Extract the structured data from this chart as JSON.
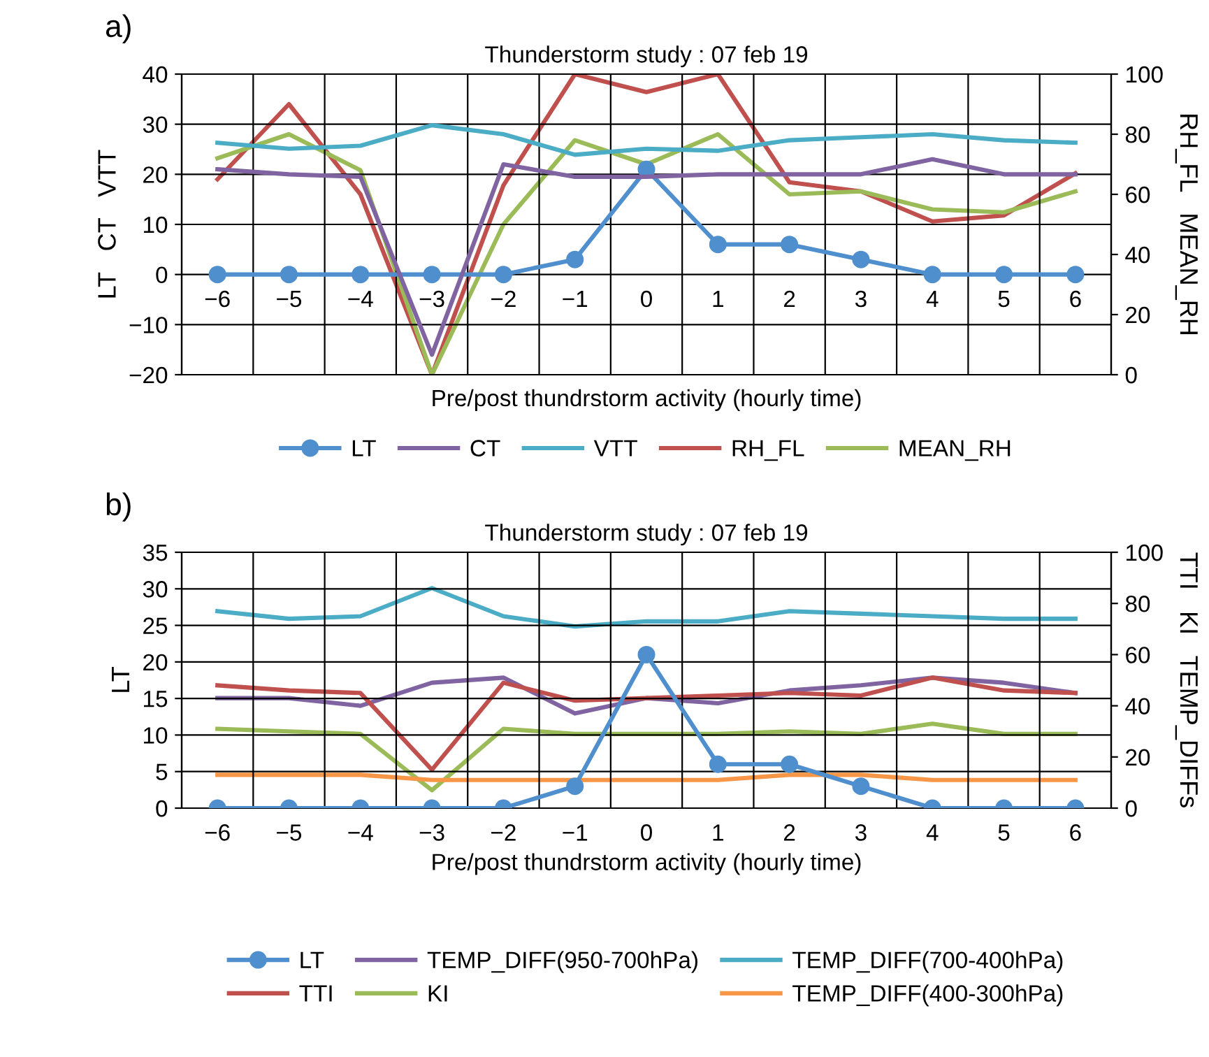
{
  "chart_data": [
    {
      "type": "line",
      "title": "Thunderstorm study : 07 feb 19",
      "xlabel": "Pre/post thundrstorm activity (hourly time)",
      "ylabel": "LT   CT   VTT",
      "y2label": "RH_FL   MEAN_RH",
      "annotations": [
        "a)"
      ],
      "categories": [
        "−6",
        "−5",
        "−4",
        "−3",
        "−2",
        "−1",
        "0",
        "1",
        "2",
        "3",
        "4",
        "5",
        "6"
      ],
      "ylim": [
        -20,
        40
      ],
      "yticks": [
        {
          "value": -20,
          "label": "−20"
        },
        {
          "value": -10,
          "label": "−10"
        },
        0,
        10,
        20,
        30,
        40
      ],
      "y2lim": [
        0,
        100
      ],
      "y2ticks": [
        0,
        20,
        40,
        60,
        80,
        100
      ],
      "grid": true,
      "legend": "bottom",
      "series": [
        {
          "name": "LT",
          "color": "#4f8fce",
          "marker": "circle",
          "values": [
            0,
            0,
            0,
            0,
            0,
            3,
            21,
            6,
            6,
            3,
            0,
            0,
            0
          ]
        },
        {
          "name": "CT",
          "color": "#8064a2",
          "values": [
            21,
            20,
            19.5,
            -16,
            22,
            19.5,
            19.5,
            20,
            20,
            20,
            23,
            20,
            20
          ]
        },
        {
          "name": "VTT",
          "color": "#4bacc6",
          "values": [
            26.3,
            25.1,
            25.7,
            29.8,
            28,
            23.9,
            25.1,
            24.7,
            26.8,
            27.4,
            28,
            26.8,
            26.3
          ]
        },
        {
          "name": "RH_FL",
          "color": "#c0504d",
          "axis": "y2",
          "values": [
            65,
            90,
            60,
            0,
            63,
            100,
            94,
            100,
            64,
            61,
            51,
            53,
            67
          ]
        },
        {
          "name": "MEAN_RH",
          "color": "#9bbb59",
          "axis": "y2",
          "values": [
            72,
            80,
            68,
            0,
            50,
            78,
            70,
            80,
            60,
            61,
            55,
            54,
            61
          ]
        }
      ]
    },
    {
      "type": "line",
      "title": "Thunderstorm study : 07 feb 19",
      "xlabel": "Pre/post thundrstorm activity (hourly time)",
      "ylabel": "LT",
      "y2label": "TTI   KI   TEMP_DIFFs",
      "annotations": [
        "b)"
      ],
      "categories": [
        "−6",
        "−5",
        "−4",
        "−3",
        "−2",
        "−1",
        "0",
        "1",
        "2",
        "3",
        "4",
        "5",
        "6"
      ],
      "ylim": [
        0,
        35
      ],
      "yticks": [
        0,
        5,
        10,
        15,
        20,
        25,
        30,
        35
      ],
      "y2lim": [
        0,
        100
      ],
      "y2ticks": [
        0,
        20,
        40,
        60,
        80,
        100
      ],
      "grid": true,
      "legend": "bottom",
      "series": [
        {
          "name": "LT",
          "color": "#4f8fce",
          "marker": "circle",
          "values": [
            0,
            0,
            0,
            0,
            0,
            3,
            21,
            6,
            6,
            3,
            0,
            0,
            0
          ]
        },
        {
          "name": "TEMP_DIFF(950-700hPa)",
          "color": "#8064a2",
          "axis": "y2",
          "values": [
            43,
            43,
            40,
            49,
            51,
            37,
            43,
            41,
            46,
            48,
            51,
            49,
            45
          ]
        },
        {
          "name": "TEMP_DIFF(700-400hPa)",
          "color": "#4bacc6",
          "axis": "y2",
          "values": [
            77,
            74,
            75,
            86,
            75,
            71,
            73,
            73,
            77,
            76,
            75,
            74,
            74
          ]
        },
        {
          "name": "TTI",
          "color": "#c0504d",
          "axis": "y2",
          "values": [
            48,
            46,
            45,
            15,
            49,
            42,
            43,
            44,
            45,
            44,
            51,
            46,
            45
          ]
        },
        {
          "name": "KI",
          "color": "#9bbb59",
          "axis": "y2",
          "values": [
            31,
            30,
            29,
            7,
            31,
            29,
            29,
            29,
            30,
            29,
            33,
            29,
            29
          ]
        },
        {
          "name": "TEMP_DIFF(400-300hPa)",
          "color": "#f79646",
          "axis": "y2",
          "values": [
            13,
            13,
            13,
            11,
            11,
            11,
            11,
            11,
            13,
            13,
            11,
            11,
            11
          ]
        }
      ]
    }
  ]
}
